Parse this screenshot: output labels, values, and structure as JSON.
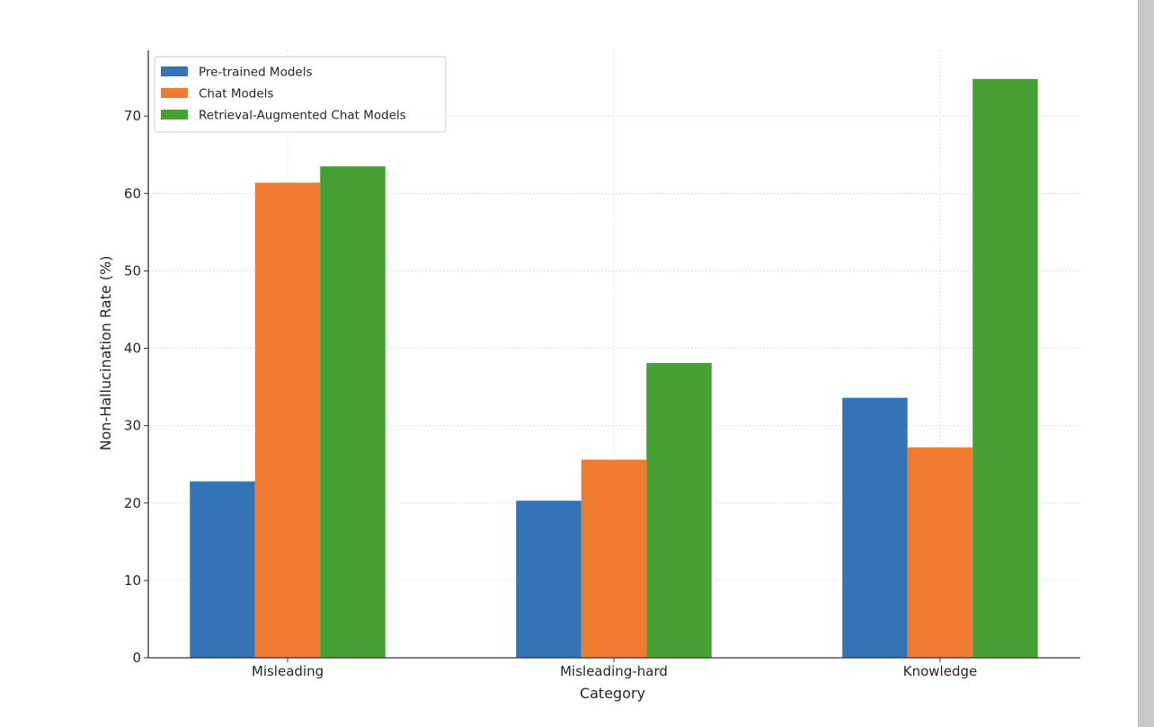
{
  "chart_data": {
    "type": "bar",
    "title": "",
    "xlabel": "Category",
    "ylabel": "Non-Hallucination Rate (%)",
    "categories": [
      "Misleading",
      "Misleading-hard",
      "Knowledge"
    ],
    "series": [
      {
        "name": "Pre-trained Models",
        "color": "#3274b5",
        "values": [
          22.8,
          20.3,
          33.6
        ]
      },
      {
        "name": "Chat Models",
        "color": "#ef7b31",
        "values": [
          61.4,
          25.6,
          27.2
        ]
      },
      {
        "name": "Retrieval-Augmented Chat Models",
        "color": "#46a033",
        "values": [
          63.5,
          38.1,
          74.8
        ]
      }
    ],
    "ylim": [
      0,
      78.5
    ],
    "yticks": [
      "0",
      "10",
      "20",
      "30",
      "40",
      "50",
      "60",
      "70"
    ],
    "grid": true,
    "legend_position": "top-left"
  }
}
